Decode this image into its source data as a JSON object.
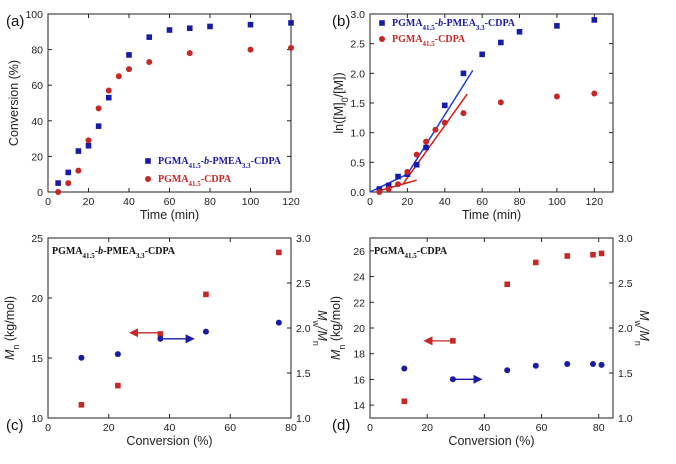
{
  "colors": {
    "blue": "#1a1aa8",
    "red": "#c62828",
    "axis": "#222222",
    "fitRed": "#d41c1c",
    "fitBlue": "#1f3fd0"
  },
  "chart_data": [
    {
      "id": "a",
      "type": "scatter",
      "panel_label": "(a)",
      "xlabel": "Time (min)",
      "ylabel": "Conversion (%)",
      "xlim": [
        0,
        120
      ],
      "ylim": [
        0,
        100
      ],
      "xticks": [
        0,
        20,
        40,
        60,
        80,
        100,
        120
      ],
      "yticks": [
        0,
        20,
        40,
        60,
        80,
        100
      ],
      "legend_position": "bottom-right",
      "series": [
        {
          "name": "PGMA41.5-b-PMEA3.3-CDPA",
          "legend": {
            "base": "PGMA",
            "sub1": "41.5",
            "mid": "-b-PMEA",
            "sub2": "3.3",
            "tail": "-CDPA"
          },
          "color": "blue",
          "marker": "square",
          "x": [
            5,
            10,
            15,
            20,
            25,
            30,
            40,
            50,
            60,
            70,
            80,
            100,
            120
          ],
          "y": [
            5,
            11,
            23,
            26,
            37,
            53,
            77,
            87,
            91,
            92,
            93,
            94,
            95
          ]
        },
        {
          "name": "PGMA41.5-CDPA",
          "legend": {
            "base": "PGMA",
            "sub1": "41.5",
            "mid": "-CDPA",
            "sub2": "",
            "tail": ""
          },
          "color": "red",
          "marker": "circle",
          "x": [
            5,
            10,
            15,
            20,
            25,
            30,
            35,
            40,
            50,
            70,
            100,
            120
          ],
          "y": [
            0,
            5,
            12,
            29,
            47,
            57,
            65,
            69,
            73,
            78,
            80,
            81
          ]
        }
      ]
    },
    {
      "id": "b",
      "type": "scatter",
      "panel_label": "(b)",
      "xlabel": "Time (min)",
      "ylabel": "ln([M]0/[M])",
      "ylabel_parts": {
        "pre": "ln([M]",
        "sub": "0",
        "post": "/[M])"
      },
      "xlim": [
        0,
        130
      ],
      "ylim": [
        0,
        3.0
      ],
      "xticks": [
        0,
        20,
        40,
        60,
        80,
        100,
        120
      ],
      "yticks": [
        0.0,
        0.5,
        1.0,
        1.5,
        2.0,
        2.5,
        3.0
      ],
      "ytick_labels": [
        "0.0",
        "0.5",
        "1.0",
        "1.5",
        "2.0",
        "2.5",
        "3.0"
      ],
      "legend_position": "top-left",
      "series": [
        {
          "name": "PGMA41.5-b-PMEA3.3-CDPA",
          "legend": {
            "base": "PGMA",
            "sub1": "41.5",
            "mid": "-b-PMEA",
            "sub2": "3.3",
            "tail": "-CDPA"
          },
          "color": "blue",
          "marker": "square",
          "x": [
            5,
            10,
            15,
            20,
            25,
            30,
            40,
            50,
            60,
            70,
            80,
            100,
            120
          ],
          "y": [
            0.05,
            0.11,
            0.26,
            0.3,
            0.46,
            0.75,
            1.46,
            2.0,
            2.32,
            2.52,
            2.7,
            2.8,
            2.9
          ]
        },
        {
          "name": "PGMA41.5-CDPA",
          "legend": {
            "base": "PGMA",
            "sub1": "41.5",
            "mid": "-CDPA",
            "sub2": "",
            "tail": ""
          },
          "color": "red",
          "marker": "circle",
          "x": [
            5,
            10,
            15,
            20,
            25,
            30,
            35,
            40,
            50,
            70,
            100,
            120
          ],
          "y": [
            0.0,
            0.05,
            0.13,
            0.34,
            0.63,
            0.85,
            1.05,
            1.17,
            1.33,
            1.51,
            1.61,
            1.66
          ]
        }
      ],
      "fit_lines": [
        {
          "color": "fitBlue",
          "x": [
            0,
            20
          ],
          "y": [
            0.0,
            0.3
          ]
        },
        {
          "color": "fitBlue",
          "x": [
            20,
            55
          ],
          "y": [
            0.3,
            2.05
          ]
        },
        {
          "color": "fitRed",
          "x": [
            5,
            25
          ],
          "y": [
            0.02,
            0.2
          ]
        },
        {
          "color": "fitRed",
          "x": [
            18,
            52
          ],
          "y": [
            0.15,
            1.65
          ]
        }
      ]
    },
    {
      "id": "c",
      "type": "scatter",
      "panel_label": "(c)",
      "title": "PGMA41.5-b-PMEA3.3-CDPA",
      "title_parts": {
        "base": "PGMA",
        "sub1": "41.5",
        "mid": "-b-PMEA",
        "sub2": "3.3",
        "tail": "-CDPA"
      },
      "xlabel": "Conversion (%)",
      "ylabel_left": "Mn (kg/mol)",
      "ylabel_right": "Mw/Mn",
      "xlim": [
        0,
        80
      ],
      "ylim_left": [
        10,
        25
      ],
      "ylim_right": [
        1.0,
        3.0
      ],
      "xticks": [
        0,
        20,
        40,
        60,
        80
      ],
      "yticks_left": [
        10,
        15,
        20,
        25
      ],
      "yticks_right": [
        1.0,
        1.5,
        2.0,
        2.5,
        3.0
      ],
      "yticks_right_labels": [
        "1.0",
        "1.5",
        "2.0",
        "2.5",
        "3.0"
      ],
      "series": [
        {
          "name": "Mn",
          "axis": "left",
          "color": "red",
          "marker": "square",
          "x": [
            11,
            23,
            37,
            52,
            76
          ],
          "y": [
            11.1,
            12.7,
            17.0,
            20.3,
            23.8
          ]
        },
        {
          "name": "Mw/Mn",
          "axis": "right",
          "color": "blue",
          "marker": "circle",
          "x": [
            11,
            23,
            37,
            52,
            76
          ],
          "y": [
            1.67,
            1.71,
            1.88,
            1.96,
            2.06
          ]
        }
      ],
      "arrows": [
        {
          "color": "red",
          "axis": "left",
          "x_from": 37,
          "x_to": 27,
          "y": 17.1
        },
        {
          "color": "blue",
          "axis": "right",
          "x_from": 38,
          "x_to": 48,
          "y": 1.88
        }
      ]
    },
    {
      "id": "d",
      "type": "scatter",
      "panel_label": "(d)",
      "title": "PGMA41.5-CDPA",
      "title_parts": {
        "base": "PGMA",
        "sub1": "41.5",
        "mid": "-CDPA",
        "sub2": "",
        "tail": ""
      },
      "xlabel": "Conversion (%)",
      "ylabel_left": "Mn (kg/mol)",
      "ylabel_right": "Mw/Mn",
      "xlim": [
        0,
        85
      ],
      "ylim_left": [
        13,
        27
      ],
      "ylim_right": [
        1.0,
        3.0
      ],
      "xticks": [
        0,
        20,
        40,
        60,
        80
      ],
      "yticks_left": [
        14,
        16,
        18,
        20,
        22,
        24,
        26
      ],
      "yticks_right": [
        1.0,
        1.5,
        2.0,
        2.5,
        3.0
      ],
      "yticks_right_labels": [
        "1.0",
        "1.5",
        "2.0",
        "2.5",
        "3.0"
      ],
      "series": [
        {
          "name": "Mn",
          "axis": "left",
          "color": "red",
          "marker": "square",
          "x": [
            12,
            29,
            48,
            58,
            69,
            78,
            81
          ],
          "y": [
            14.3,
            19.0,
            23.4,
            25.1,
            25.6,
            25.7,
            25.8
          ]
        },
        {
          "name": "Mw/Mn",
          "axis": "right",
          "color": "blue",
          "marker": "circle",
          "x": [
            12,
            29,
            48,
            58,
            69,
            78,
            81
          ],
          "y": [
            1.55,
            1.43,
            1.53,
            1.58,
            1.6,
            1.6,
            1.59
          ]
        }
      ],
      "arrows": [
        {
          "color": "red",
          "axis": "left",
          "x_from": 29,
          "x_to": 19,
          "y": 19.0
        },
        {
          "color": "blue",
          "axis": "right",
          "x_from": 29,
          "x_to": 39,
          "y": 1.43
        }
      ]
    }
  ]
}
